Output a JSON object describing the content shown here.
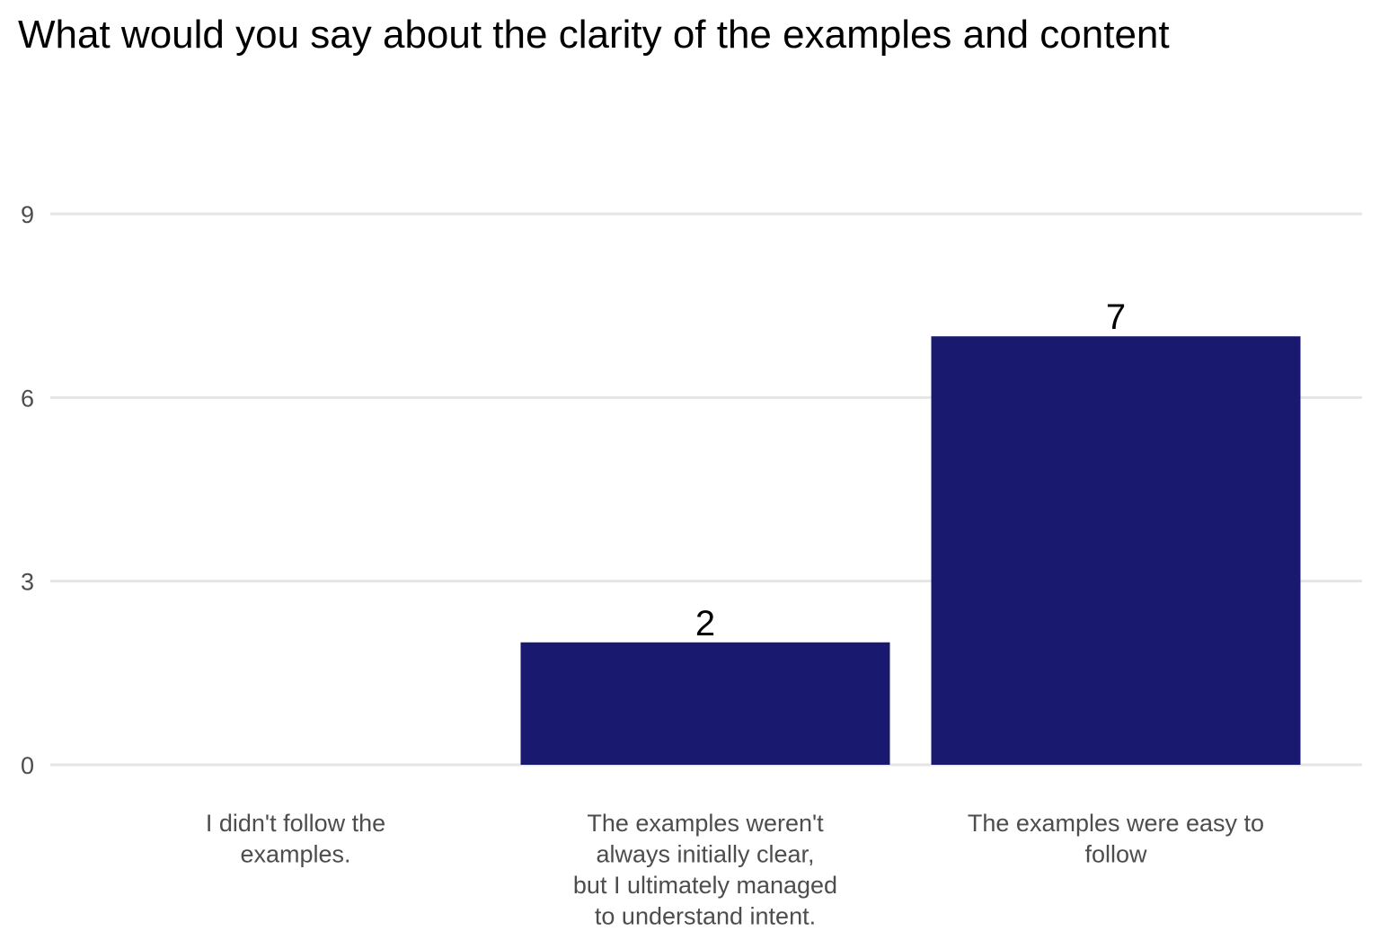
{
  "chart_data": {
    "type": "bar",
    "title": "What would you say about the clarity of the examples and content",
    "xlabel": "",
    "ylabel": "",
    "categories": [
      [
        "I didn't follow the",
        "examples."
      ],
      [
        "The examples weren't",
        "always initially clear,",
        "but I ultimately managed",
        "to understand intent."
      ],
      [
        "The examples were easy to",
        "follow"
      ]
    ],
    "values": [
      0,
      2,
      7
    ],
    "data_labels": [
      "",
      "2",
      "7"
    ],
    "ylim": [
      0,
      9
    ],
    "yticks": [
      0,
      3,
      6,
      9
    ],
    "grid": "horizontal",
    "legend": "none",
    "bar_color": "#191970",
    "grid_color": "#e5e5e5",
    "tick_color": "#4d4d4d"
  }
}
